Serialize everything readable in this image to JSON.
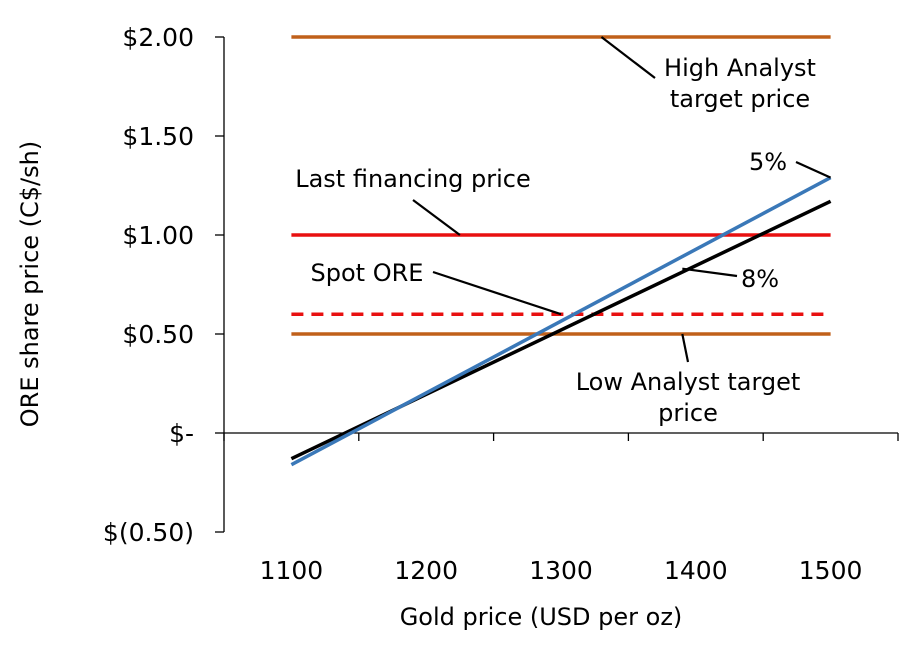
{
  "chart_data": {
    "type": "line",
    "xlabel": "Gold price (USD per oz)",
    "ylabel": "ORE share price (C$/sh)",
    "xlim": [
      1050,
      1550
    ],
    "ylim": [
      -0.5,
      2.0
    ],
    "x_ticks": [
      {
        "value": 1100,
        "label": "1100"
      },
      {
        "value": 1200,
        "label": "1200"
      },
      {
        "value": 1300,
        "label": "1300"
      },
      {
        "value": 1400,
        "label": "1400"
      },
      {
        "value": 1500,
        "label": "1500"
      }
    ],
    "y_ticks": [
      {
        "value": 2.0,
        "label": "$2.00"
      },
      {
        "value": 1.5,
        "label": "$1.50"
      },
      {
        "value": 1.0,
        "label": "$1.00"
      },
      {
        "value": 0.5,
        "label": "$0.50"
      },
      {
        "value": 0.0,
        "label": "$-"
      },
      {
        "value": -0.5,
        "label": "$(0.50)"
      }
    ],
    "grid": false,
    "legend": "none",
    "series": [
      {
        "id": "high-analyst",
        "name": "High Analyst target price",
        "x": [
          1100,
          1500
        ],
        "y": [
          2.0,
          2.0
        ],
        "color": "#C0601A",
        "dash": false
      },
      {
        "id": "last-financing",
        "name": "Last financing price",
        "x": [
          1100,
          1500
        ],
        "y": [
          1.0,
          1.0
        ],
        "color": "#E81010",
        "dash": false
      },
      {
        "id": "spot-ore",
        "name": "Spot ORE",
        "x": [
          1100,
          1500
        ],
        "y": [
          0.6,
          0.6
        ],
        "color": "#E81010",
        "dash": true
      },
      {
        "id": "low-analyst",
        "name": "Low Analyst target price",
        "x": [
          1100,
          1500
        ],
        "y": [
          0.5,
          0.5
        ],
        "color": "#C0601A",
        "dash": false
      },
      {
        "id": "discount-8",
        "name": "8%",
        "x": [
          1100,
          1500
        ],
        "y": [
          -0.13,
          1.17
        ],
        "color": "#000000",
        "dash": false
      },
      {
        "id": "discount-5",
        "name": "5%",
        "x": [
          1100,
          1500
        ],
        "y": [
          -0.16,
          1.29
        ],
        "color": "#3A78B8",
        "dash": false
      }
    ],
    "annotations": [
      {
        "id": "high-analyst",
        "lines": [
          "High Analyst",
          "target price"
        ],
        "point": [
          1330,
          2.0
        ]
      },
      {
        "id": "last-financing",
        "lines": [
          "Last financing price"
        ],
        "point": [
          1225,
          1.0
        ]
      },
      {
        "id": "spot-ore",
        "lines": [
          "Spot ORE"
        ],
        "point": [
          1300,
          0.6
        ]
      },
      {
        "id": "low-analyst",
        "lines": [
          "Low Analyst target",
          "price"
        ],
        "point": [
          1390,
          0.5
        ]
      },
      {
        "id": "discount-8",
        "lines": [
          "8%"
        ],
        "point": [
          1390,
          0.83
        ]
      },
      {
        "id": "discount-5",
        "lines": [
          "5%"
        ],
        "point": [
          1500,
          1.29
        ]
      }
    ]
  }
}
